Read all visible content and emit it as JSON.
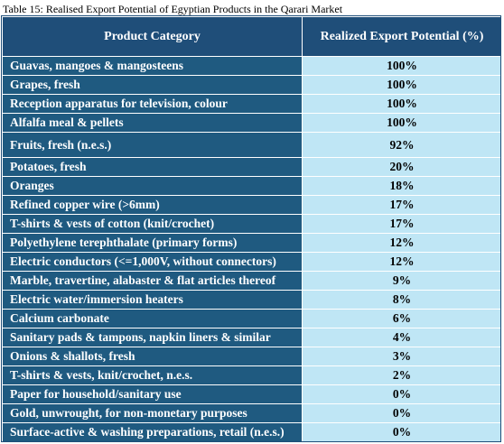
{
  "caption": "Table 15: Realised Export Potential of Egyptian Products in the Qarari Market",
  "headers": {
    "category": "Product Category",
    "potential": "Realized Export Potential (%)"
  },
  "rows": [
    {
      "category": "Guavas, mangoes & mangosteens",
      "value": "100%"
    },
    {
      "category": "Grapes, fresh",
      "value": "100%"
    },
    {
      "category": "Reception apparatus for television, colour",
      "value": "100%"
    },
    {
      "category": "Alfalfa meal & pellets",
      "value": "100%"
    },
    {
      "category": "Fruits, fresh (n.e.s.)",
      "value": "92%"
    },
    {
      "category": "Potatoes, fresh",
      "value": "20%"
    },
    {
      "category": "Oranges",
      "value": "18%"
    },
    {
      "category": "Refined copper wire (>6mm)",
      "value": "17%"
    },
    {
      "category": "T-shirts & vests of cotton (knit/crochet)",
      "value": "17%"
    },
    {
      "category": "Polyethylene terephthalate (primary forms)",
      "value": "12%"
    },
    {
      "category": "Electric conductors (<=1,000V, without connectors)",
      "value": "12%"
    },
    {
      "category": "Marble, travertine, alabaster & flat articles thereof",
      "value": "9%"
    },
    {
      "category": "Electric water/immersion heaters",
      "value": "8%"
    },
    {
      "category": "Calcium carbonate",
      "value": "6%"
    },
    {
      "category": "Sanitary pads & tampons, napkin liners & similar",
      "value": "4%"
    },
    {
      "category": "Onions & shallots, fresh",
      "value": "3%"
    },
    {
      "category": "T-shirts & vests, knit/crochet, n.e.s.",
      "value": "2%"
    },
    {
      "category": "Paper for household/sanitary use",
      "value": "0%"
    },
    {
      "category": "Gold, unwrought, for non-monetary purposes",
      "value": "0%"
    },
    {
      "category": "Surface-active & washing preparations, retail (n.e.s.)",
      "value": "0%"
    }
  ],
  "colors": {
    "header_bg": "#1f4e79",
    "category_bg": "#1f5a80",
    "value_bg": "#bfe6f5"
  }
}
